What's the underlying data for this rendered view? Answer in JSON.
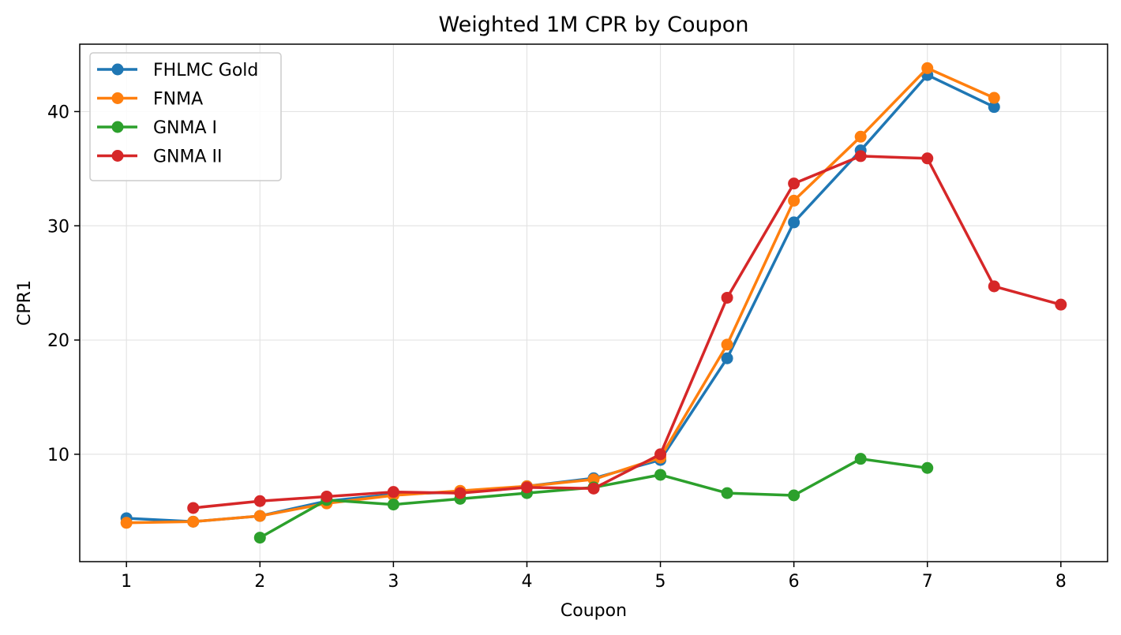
{
  "chart_data": {
    "type": "line",
    "title": "Weighted 1M CPR by Coupon",
    "xlabel": "Coupon",
    "ylabel": "CPR1",
    "xlim": [
      0.65,
      8.35
    ],
    "ylim": [
      0.6,
      45.9
    ],
    "xticks": [
      1,
      2,
      3,
      4,
      5,
      6,
      7,
      8
    ],
    "yticks": [
      10,
      20,
      30,
      40
    ],
    "grid": true,
    "legend_position": "top-left",
    "series": [
      {
        "name": "FHLMC Gold",
        "color": "#1f77b4",
        "x": [
          1,
          1.5,
          2,
          2.5,
          3,
          3.5,
          4,
          4.5,
          5,
          5.5,
          6,
          6.5,
          7,
          7.5
        ],
        "y": [
          4.4,
          4.1,
          4.6,
          5.9,
          6.5,
          6.7,
          7.2,
          7.9,
          9.5,
          18.4,
          30.3,
          36.6,
          43.2,
          40.4
        ]
      },
      {
        "name": "FNMA",
        "color": "#ff7f0e",
        "x": [
          1,
          1.5,
          2,
          2.5,
          3,
          3.5,
          4,
          4.5,
          5,
          5.5,
          6,
          6.5,
          7,
          7.5
        ],
        "y": [
          4.0,
          4.1,
          4.6,
          5.7,
          6.4,
          6.8,
          7.2,
          7.8,
          9.7,
          19.6,
          32.2,
          37.8,
          43.8,
          41.2
        ]
      },
      {
        "name": "GNMA I",
        "color": "#2ca02c",
        "x": [
          2,
          2.5,
          3,
          3.5,
          4,
          4.5,
          5,
          5.5,
          6,
          6.5,
          7
        ],
        "y": [
          2.7,
          6.0,
          5.6,
          6.1,
          6.6,
          7.1,
          8.2,
          6.6,
          6.4,
          9.6,
          8.8
        ]
      },
      {
        "name": "GNMA II",
        "color": "#d62728",
        "x": [
          1.5,
          2,
          2.5,
          3,
          3.5,
          4,
          4.5,
          5,
          5.5,
          6,
          6.5,
          7,
          7.5,
          8
        ],
        "y": [
          5.3,
          5.9,
          6.3,
          6.7,
          6.6,
          7.1,
          7.0,
          10.0,
          23.7,
          33.7,
          36.1,
          35.9,
          24.7,
          23.1
        ]
      }
    ]
  }
}
